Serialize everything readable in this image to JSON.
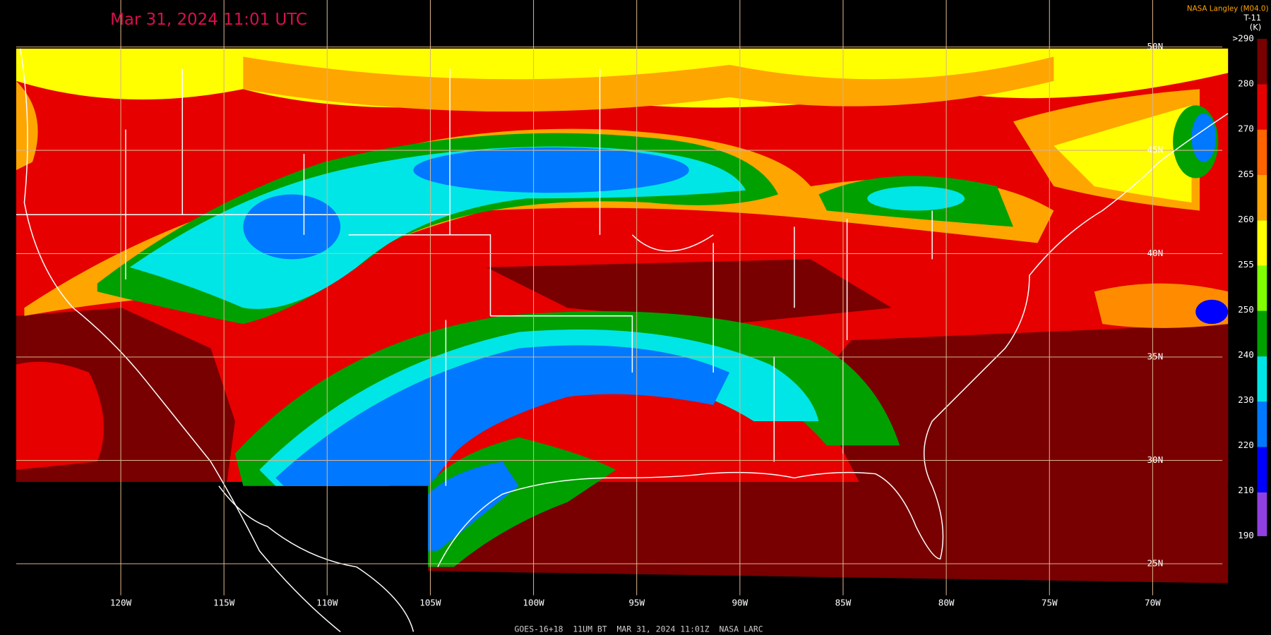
{
  "header": {
    "title": "Mar 31, 2024 11:01 UTC",
    "credit": "NASA Langley (M04.0)"
  },
  "colorbar": {
    "title": "T-11",
    "unit": "(K)",
    "labels": [
      ">290",
      "280",
      "270",
      "265",
      "260",
      "255",
      "250",
      "240",
      "230",
      "220",
      "210",
      "190"
    ]
  },
  "latitude_labels": [
    "50N",
    "45N",
    "40N",
    "35N",
    "30N",
    "25N"
  ],
  "longitude_labels": [
    "120W",
    "115W",
    "110W",
    "105W",
    "100W",
    "95W",
    "90W",
    "85W",
    "80W",
    "75W",
    "70W"
  ],
  "footer": {
    "text": "GOES-16+18  11UM BT  MAR 31, 2024 11:01Z  NASA LARC"
  }
}
